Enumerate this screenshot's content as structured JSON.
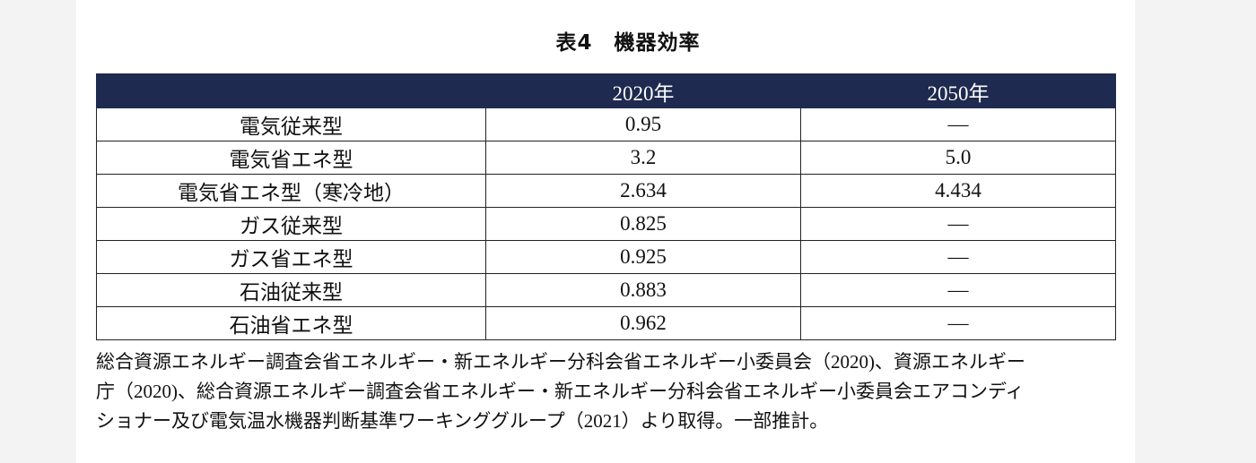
{
  "title": "表4　機器効率",
  "table": {
    "headers": [
      "",
      "2020年",
      "2050年"
    ],
    "rows": [
      [
        "電気従来型",
        "0.95",
        "—"
      ],
      [
        "電気省エネ型",
        "3.2",
        "5.0"
      ],
      [
        "電気省エネ型（寒冷地）",
        "2.634",
        "4.434"
      ],
      [
        "ガス従来型",
        "0.825",
        "—"
      ],
      [
        "ガス省エネ型",
        "0.925",
        "—"
      ],
      [
        "石油従来型",
        "0.883",
        "—"
      ],
      [
        "石油省エネ型",
        "0.962",
        "—"
      ]
    ]
  },
  "note": {
    "lines": [
      "総合資源エネルギー調査会省エネルギー・新エネルギー分科会省エネルギー小委員会（2020)、資源エネルギー",
      "庁（2020)、総合資源エネルギー調査会省エネルギー・新エネルギー分科会省エネルギー小委員会エアコンディ",
      "ショナー及び電気温水機器判断基準ワーキンググループ（2021）より取得。一部推計。"
    ]
  }
}
